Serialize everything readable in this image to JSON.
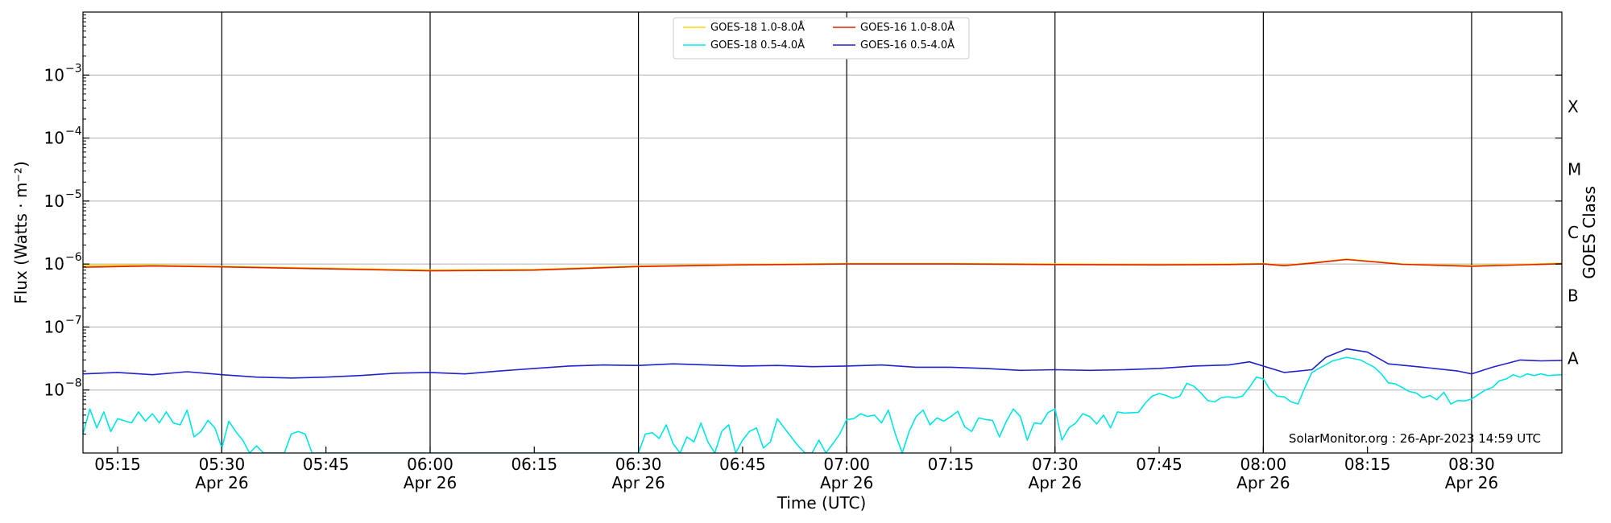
{
  "chart_data": {
    "type": "line",
    "xlabel": "Time (UTC)",
    "ylabel": "Flux (Watts · m⁻²)",
    "y2label": "GOES Class",
    "y_scale": "log",
    "ylim": [
      1e-09,
      0.01
    ],
    "xlim": [
      "05:10",
      "08:43"
    ],
    "grid": "horizontal at decades",
    "date_label": "Apr 26",
    "x_ticks": [
      {
        "time": "05:15",
        "label": "05:15",
        "date": ""
      },
      {
        "time": "05:30",
        "label": "05:30",
        "date": "Apr 26"
      },
      {
        "time": "05:45",
        "label": "05:45",
        "date": ""
      },
      {
        "time": "06:00",
        "label": "06:00",
        "date": "Apr 26"
      },
      {
        "time": "06:15",
        "label": "06:15",
        "date": ""
      },
      {
        "time": "06:30",
        "label": "06:30",
        "date": "Apr 26"
      },
      {
        "time": "06:45",
        "label": "06:45",
        "date": ""
      },
      {
        "time": "07:00",
        "label": "07:00",
        "date": "Apr 26"
      },
      {
        "time": "07:15",
        "label": "07:15",
        "date": ""
      },
      {
        "time": "07:30",
        "label": "07:30",
        "date": "Apr 26"
      },
      {
        "time": "07:45",
        "label": "07:45",
        "date": ""
      },
      {
        "time": "08:00",
        "label": "08:00",
        "date": "Apr 26"
      },
      {
        "time": "08:15",
        "label": "08:15",
        "date": ""
      },
      {
        "time": "08:30",
        "label": "08:30",
        "date": "Apr 26"
      }
    ],
    "vertical_lines": [
      "05:30",
      "06:00",
      "06:30",
      "07:00",
      "07:30",
      "08:00",
      "08:30"
    ],
    "y_ticks": [
      {
        "value": 1e-08,
        "label": "10",
        "exp": "−8"
      },
      {
        "value": 1e-07,
        "label": "10",
        "exp": "−7"
      },
      {
        "value": 1e-06,
        "label": "10",
        "exp": "−6"
      },
      {
        "value": 1e-05,
        "label": "10",
        "exp": "−5"
      },
      {
        "value": 0.0001,
        "label": "10",
        "exp": "−4"
      },
      {
        "value": 0.001,
        "label": "10",
        "exp": "−3"
      }
    ],
    "goes_classes": [
      {
        "label": "A",
        "value": 3.16e-08
      },
      {
        "label": "B",
        "value": 3.16e-07
      },
      {
        "label": "C",
        "value": 3.16e-06
      },
      {
        "label": "M",
        "value": 3.16e-05
      },
      {
        "label": "X",
        "value": 0.000316
      }
    ],
    "credit": "SolarMonitor.org : 26-Apr-2023 14:59 UTC",
    "series": [
      {
        "name": "GOES-18 1.0-8.0Å",
        "color": "#ffd700",
        "points": [
          [
            "05:10",
            9.5e-07
          ],
          [
            "05:20",
            9.6e-07
          ],
          [
            "05:30",
            9.2e-07
          ],
          [
            "05:45",
            8.6e-07
          ],
          [
            "06:00",
            8e-07
          ],
          [
            "06:15",
            8.2e-07
          ],
          [
            "06:30",
            9.3e-07
          ],
          [
            "06:45",
            9.9e-07
          ],
          [
            "07:00",
            1.02e-06
          ],
          [
            "07:15",
            1.02e-06
          ],
          [
            "07:30",
            1e-06
          ],
          [
            "07:45",
            9.9e-07
          ],
          [
            "07:55",
            1e-06
          ],
          [
            "08:00",
            1.02e-06
          ],
          [
            "08:03",
            9.6e-07
          ],
          [
            "08:07",
            1.05e-06
          ],
          [
            "08:12",
            1.2e-06
          ],
          [
            "08:20",
            1e-06
          ],
          [
            "08:30",
            9.4e-07
          ],
          [
            "08:43",
            1.03e-06
          ]
        ]
      },
      {
        "name": "GOES-16 1.0-8.0Å",
        "color": "#e02000",
        "points": [
          [
            "05:10",
            8.9e-07
          ],
          [
            "05:20",
            9.3e-07
          ],
          [
            "05:30",
            9e-07
          ],
          [
            "05:45",
            8.4e-07
          ],
          [
            "06:00",
            7.8e-07
          ],
          [
            "06:15",
            8e-07
          ],
          [
            "06:30",
            9.1e-07
          ],
          [
            "06:45",
            9.7e-07
          ],
          [
            "07:00",
            1e-06
          ],
          [
            "07:15",
            1e-06
          ],
          [
            "07:30",
            9.8e-07
          ],
          [
            "07:45",
            9.7e-07
          ],
          [
            "07:55",
            9.8e-07
          ],
          [
            "08:00",
            1e-06
          ],
          [
            "08:03",
            9.4e-07
          ],
          [
            "08:07",
            1.03e-06
          ],
          [
            "08:12",
            1.18e-06
          ],
          [
            "08:20",
            9.9e-07
          ],
          [
            "08:30",
            9.2e-07
          ],
          [
            "08:43",
            1.01e-06
          ]
        ]
      },
      {
        "name": "GOES-16 0.5-4.0Å",
        "color": "#2222cc",
        "points": [
          [
            "05:10",
            1.8e-08
          ],
          [
            "05:15",
            1.9e-08
          ],
          [
            "05:20",
            1.75e-08
          ],
          [
            "05:25",
            1.95e-08
          ],
          [
            "05:30",
            1.75e-08
          ],
          [
            "05:35",
            1.6e-08
          ],
          [
            "05:40",
            1.55e-08
          ],
          [
            "05:45",
            1.6e-08
          ],
          [
            "05:50",
            1.7e-08
          ],
          [
            "05:55",
            1.85e-08
          ],
          [
            "06:00",
            1.9e-08
          ],
          [
            "06:05",
            1.8e-08
          ],
          [
            "06:10",
            2e-08
          ],
          [
            "06:15",
            2.2e-08
          ],
          [
            "06:20",
            2.4e-08
          ],
          [
            "06:25",
            2.5e-08
          ],
          [
            "06:30",
            2.45e-08
          ],
          [
            "06:35",
            2.6e-08
          ],
          [
            "06:40",
            2.5e-08
          ],
          [
            "06:45",
            2.4e-08
          ],
          [
            "06:50",
            2.45e-08
          ],
          [
            "06:55",
            2.35e-08
          ],
          [
            "07:00",
            2.4e-08
          ],
          [
            "07:05",
            2.5e-08
          ],
          [
            "07:10",
            2.3e-08
          ],
          [
            "07:15",
            2.3e-08
          ],
          [
            "07:20",
            2.2e-08
          ],
          [
            "07:25",
            2.05e-08
          ],
          [
            "07:30",
            2.1e-08
          ],
          [
            "07:35",
            2.05e-08
          ],
          [
            "07:40",
            2.1e-08
          ],
          [
            "07:45",
            2.2e-08
          ],
          [
            "07:50",
            2.4e-08
          ],
          [
            "07:55",
            2.5e-08
          ],
          [
            "07:58",
            2.8e-08
          ],
          [
            "08:03",
            1.9e-08
          ],
          [
            "08:07",
            2.1e-08
          ],
          [
            "08:09",
            3.3e-08
          ],
          [
            "08:12",
            4.5e-08
          ],
          [
            "08:15",
            4e-08
          ],
          [
            "08:18",
            2.6e-08
          ],
          [
            "08:23",
            2.3e-08
          ],
          [
            "08:28",
            2e-08
          ],
          [
            "08:30",
            1.8e-08
          ],
          [
            "08:33",
            2.3e-08
          ],
          [
            "08:37",
            3e-08
          ],
          [
            "08:40",
            2.9e-08
          ],
          [
            "08:43",
            2.95e-08
          ]
        ]
      },
      {
        "name": "GOES-18 0.5-4.0Å",
        "color": "#00e5e5",
        "points": [
          [
            "05:10",
            2e-09
          ],
          [
            "05:11",
            5e-09
          ],
          [
            "05:12",
            2.5e-09
          ],
          [
            "05:13",
            4.5e-09
          ],
          [
            "05:14",
            2.2e-09
          ],
          [
            "05:15",
            3.5e-09
          ],
          [
            "05:17",
            3e-09
          ],
          [
            "05:18",
            4.5e-09
          ],
          [
            "05:19",
            3.2e-09
          ],
          [
            "05:20",
            4.2e-09
          ],
          [
            "05:21",
            3e-09
          ],
          [
            "05:22",
            4.5e-09
          ],
          [
            "05:23",
            3e-09
          ],
          [
            "05:24",
            2.8e-09
          ],
          [
            "05:25",
            4.8e-09
          ],
          [
            "05:26",
            1.8e-09
          ],
          [
            "05:27",
            2.2e-09
          ],
          [
            "05:28",
            3.3e-09
          ],
          [
            "05:29",
            2.5e-09
          ],
          [
            "05:30",
            1.2e-09
          ],
          [
            "05:31",
            3.2e-09
          ],
          [
            "05:32",
            2.2e-09
          ],
          [
            "05:33",
            1.6e-09
          ],
          [
            "05:34",
            1e-09
          ],
          [
            "05:35",
            1.3e-09
          ],
          [
            "05:36",
            1e-09
          ],
          [
            "05:37",
            1e-09
          ],
          [
            "05:39",
            1e-09
          ],
          [
            "05:40",
            2e-09
          ],
          [
            "05:41",
            2.2e-09
          ],
          [
            "05:42",
            2e-09
          ],
          [
            "05:43",
            1e-09
          ],
          [
            "06:30",
            1e-09
          ],
          [
            "06:31",
            2e-09
          ],
          [
            "06:32",
            2.1e-09
          ],
          [
            "06:33",
            1.7e-09
          ],
          [
            "06:34",
            2.8e-09
          ],
          [
            "06:35",
            1.4e-09
          ],
          [
            "06:36",
            1e-09
          ],
          [
            "06:37",
            1.8e-09
          ],
          [
            "06:38",
            1.5e-09
          ],
          [
            "06:39",
            3e-09
          ],
          [
            "06:40",
            1.5e-09
          ],
          [
            "06:41",
            1e-09
          ],
          [
            "06:42",
            2.2e-09
          ],
          [
            "06:43",
            2.8e-09
          ],
          [
            "06:44",
            1e-09
          ],
          [
            "06:45",
            1.6e-09
          ],
          [
            "06:46",
            2.2e-09
          ],
          [
            "06:47",
            2.5e-09
          ],
          [
            "06:48",
            1.2e-09
          ],
          [
            "06:49",
            1.5e-09
          ],
          [
            "06:50",
            3.5e-09
          ],
          [
            "06:51",
            2.5e-09
          ],
          [
            "06:52",
            1.8e-09
          ],
          [
            "06:53",
            1.3e-09
          ],
          [
            "06:54",
            1e-09
          ],
          [
            "06:55",
            1e-09
          ],
          [
            "06:56",
            1.6e-09
          ],
          [
            "06:57",
            1e-09
          ],
          [
            "06:58",
            1.4e-09
          ],
          [
            "06:59",
            2e-09
          ],
          [
            "07:00",
            3.4e-09
          ],
          [
            "07:01",
            3.5e-09
          ],
          [
            "07:02",
            4.2e-09
          ],
          [
            "07:03",
            3.8e-09
          ],
          [
            "07:04",
            4e-09
          ],
          [
            "07:05",
            3e-09
          ],
          [
            "07:06",
            4.8e-09
          ],
          [
            "07:07",
            2e-09
          ],
          [
            "07:08",
            1e-09
          ],
          [
            "07:09",
            2.2e-09
          ],
          [
            "07:10",
            3.8e-09
          ],
          [
            "07:11",
            4.8e-09
          ],
          [
            "07:12",
            2.8e-09
          ],
          [
            "07:13",
            3.6e-09
          ],
          [
            "07:14",
            3.2e-09
          ],
          [
            "07:15",
            3.8e-09
          ],
          [
            "07:16",
            4.6e-09
          ],
          [
            "07:17",
            2.6e-09
          ],
          [
            "07:18",
            2.2e-09
          ],
          [
            "07:19",
            3.6e-09
          ],
          [
            "07:20",
            3.4e-09
          ],
          [
            "07:21",
            3.3e-09
          ],
          [
            "07:22",
            1.8e-09
          ],
          [
            "07:23",
            3.2e-09
          ],
          [
            "07:24",
            5e-09
          ],
          [
            "07:25",
            3.8e-09
          ],
          [
            "07:26",
            1.6e-09
          ],
          [
            "07:27",
            3e-09
          ],
          [
            "07:28",
            2.9e-09
          ],
          [
            "07:29",
            4.4e-09
          ],
          [
            "07:30",
            5e-09
          ],
          [
            "07:31",
            1.6e-09
          ],
          [
            "07:32",
            2.5e-09
          ],
          [
            "07:33",
            3e-09
          ],
          [
            "07:34",
            4.2e-09
          ],
          [
            "07:35",
            3.8e-09
          ],
          [
            "07:36",
            2.9e-09
          ],
          [
            "07:37",
            4e-09
          ],
          [
            "07:38",
            2.5e-09
          ],
          [
            "07:39",
            4.5e-09
          ],
          [
            "07:40",
            4.3e-09
          ],
          [
            "07:42",
            4.4e-09
          ],
          [
            "07:43",
            6.2e-09
          ],
          [
            "07:44",
            8e-09
          ],
          [
            "07:45",
            8.8e-09
          ],
          [
            "07:46",
            8.2e-09
          ],
          [
            "07:47",
            7.4e-09
          ],
          [
            "07:48",
            8e-09
          ],
          [
            "07:49",
            1.28e-08
          ],
          [
            "07:50",
            1.15e-08
          ],
          [
            "07:51",
            9e-09
          ],
          [
            "07:52",
            6.8e-09
          ],
          [
            "07:53",
            6.5e-09
          ],
          [
            "07:54",
            7.6e-09
          ],
          [
            "07:55",
            7.8e-09
          ],
          [
            "07:56",
            7.5e-09
          ],
          [
            "07:57",
            8e-09
          ],
          [
            "07:58",
            1.1e-08
          ],
          [
            "07:59",
            1.6e-08
          ],
          [
            "08:00",
            1.5e-08
          ],
          [
            "08:01",
            1e-08
          ],
          [
            "08:02",
            8e-09
          ],
          [
            "08:03",
            7.8e-09
          ],
          [
            "08:04",
            6.5e-09
          ],
          [
            "08:05",
            6e-09
          ],
          [
            "08:06",
            1.1e-08
          ],
          [
            "08:07",
            1.9e-08
          ],
          [
            "08:08",
            2.2e-08
          ],
          [
            "08:10",
            2.9e-08
          ],
          [
            "08:12",
            3.3e-08
          ],
          [
            "08:14",
            3e-08
          ],
          [
            "08:16",
            2.3e-08
          ],
          [
            "08:17",
            1.8e-08
          ],
          [
            "08:18",
            1.3e-08
          ],
          [
            "08:19",
            1.25e-08
          ],
          [
            "08:20",
            1.1e-08
          ],
          [
            "08:21",
            9.5e-09
          ],
          [
            "08:22",
            9e-09
          ],
          [
            "08:23",
            7.5e-09
          ],
          [
            "08:24",
            8.2e-09
          ],
          [
            "08:25",
            7e-09
          ],
          [
            "08:26",
            9.2e-09
          ],
          [
            "08:27",
            6e-09
          ],
          [
            "08:28",
            6.8e-09
          ],
          [
            "08:29",
            6.7e-09
          ],
          [
            "08:30",
            7.2e-09
          ],
          [
            "08:31",
            8.5e-09
          ],
          [
            "08:32",
            1e-08
          ],
          [
            "08:33",
            1.1e-08
          ],
          [
            "08:34",
            1.4e-08
          ],
          [
            "08:35",
            1.5e-08
          ],
          [
            "08:36",
            1.75e-08
          ],
          [
            "08:37",
            1.6e-08
          ],
          [
            "08:38",
            1.8e-08
          ],
          [
            "08:39",
            1.7e-08
          ],
          [
            "08:40",
            1.8e-08
          ],
          [
            "08:41",
            1.7e-08
          ],
          [
            "08:43",
            1.75e-08
          ]
        ]
      }
    ],
    "legend": {
      "placement": "top-center",
      "entries": [
        {
          "name": "GOES-18 1.0-8.0Å",
          "color": "#ffd700"
        },
        {
          "name": "GOES-18 0.5-4.0Å",
          "color": "#00e5e5"
        },
        {
          "name": "GOES-16 1.0-8.0Å",
          "color": "#e02000"
        },
        {
          "name": "GOES-16 0.5-4.0Å",
          "color": "#2222cc"
        }
      ]
    }
  }
}
